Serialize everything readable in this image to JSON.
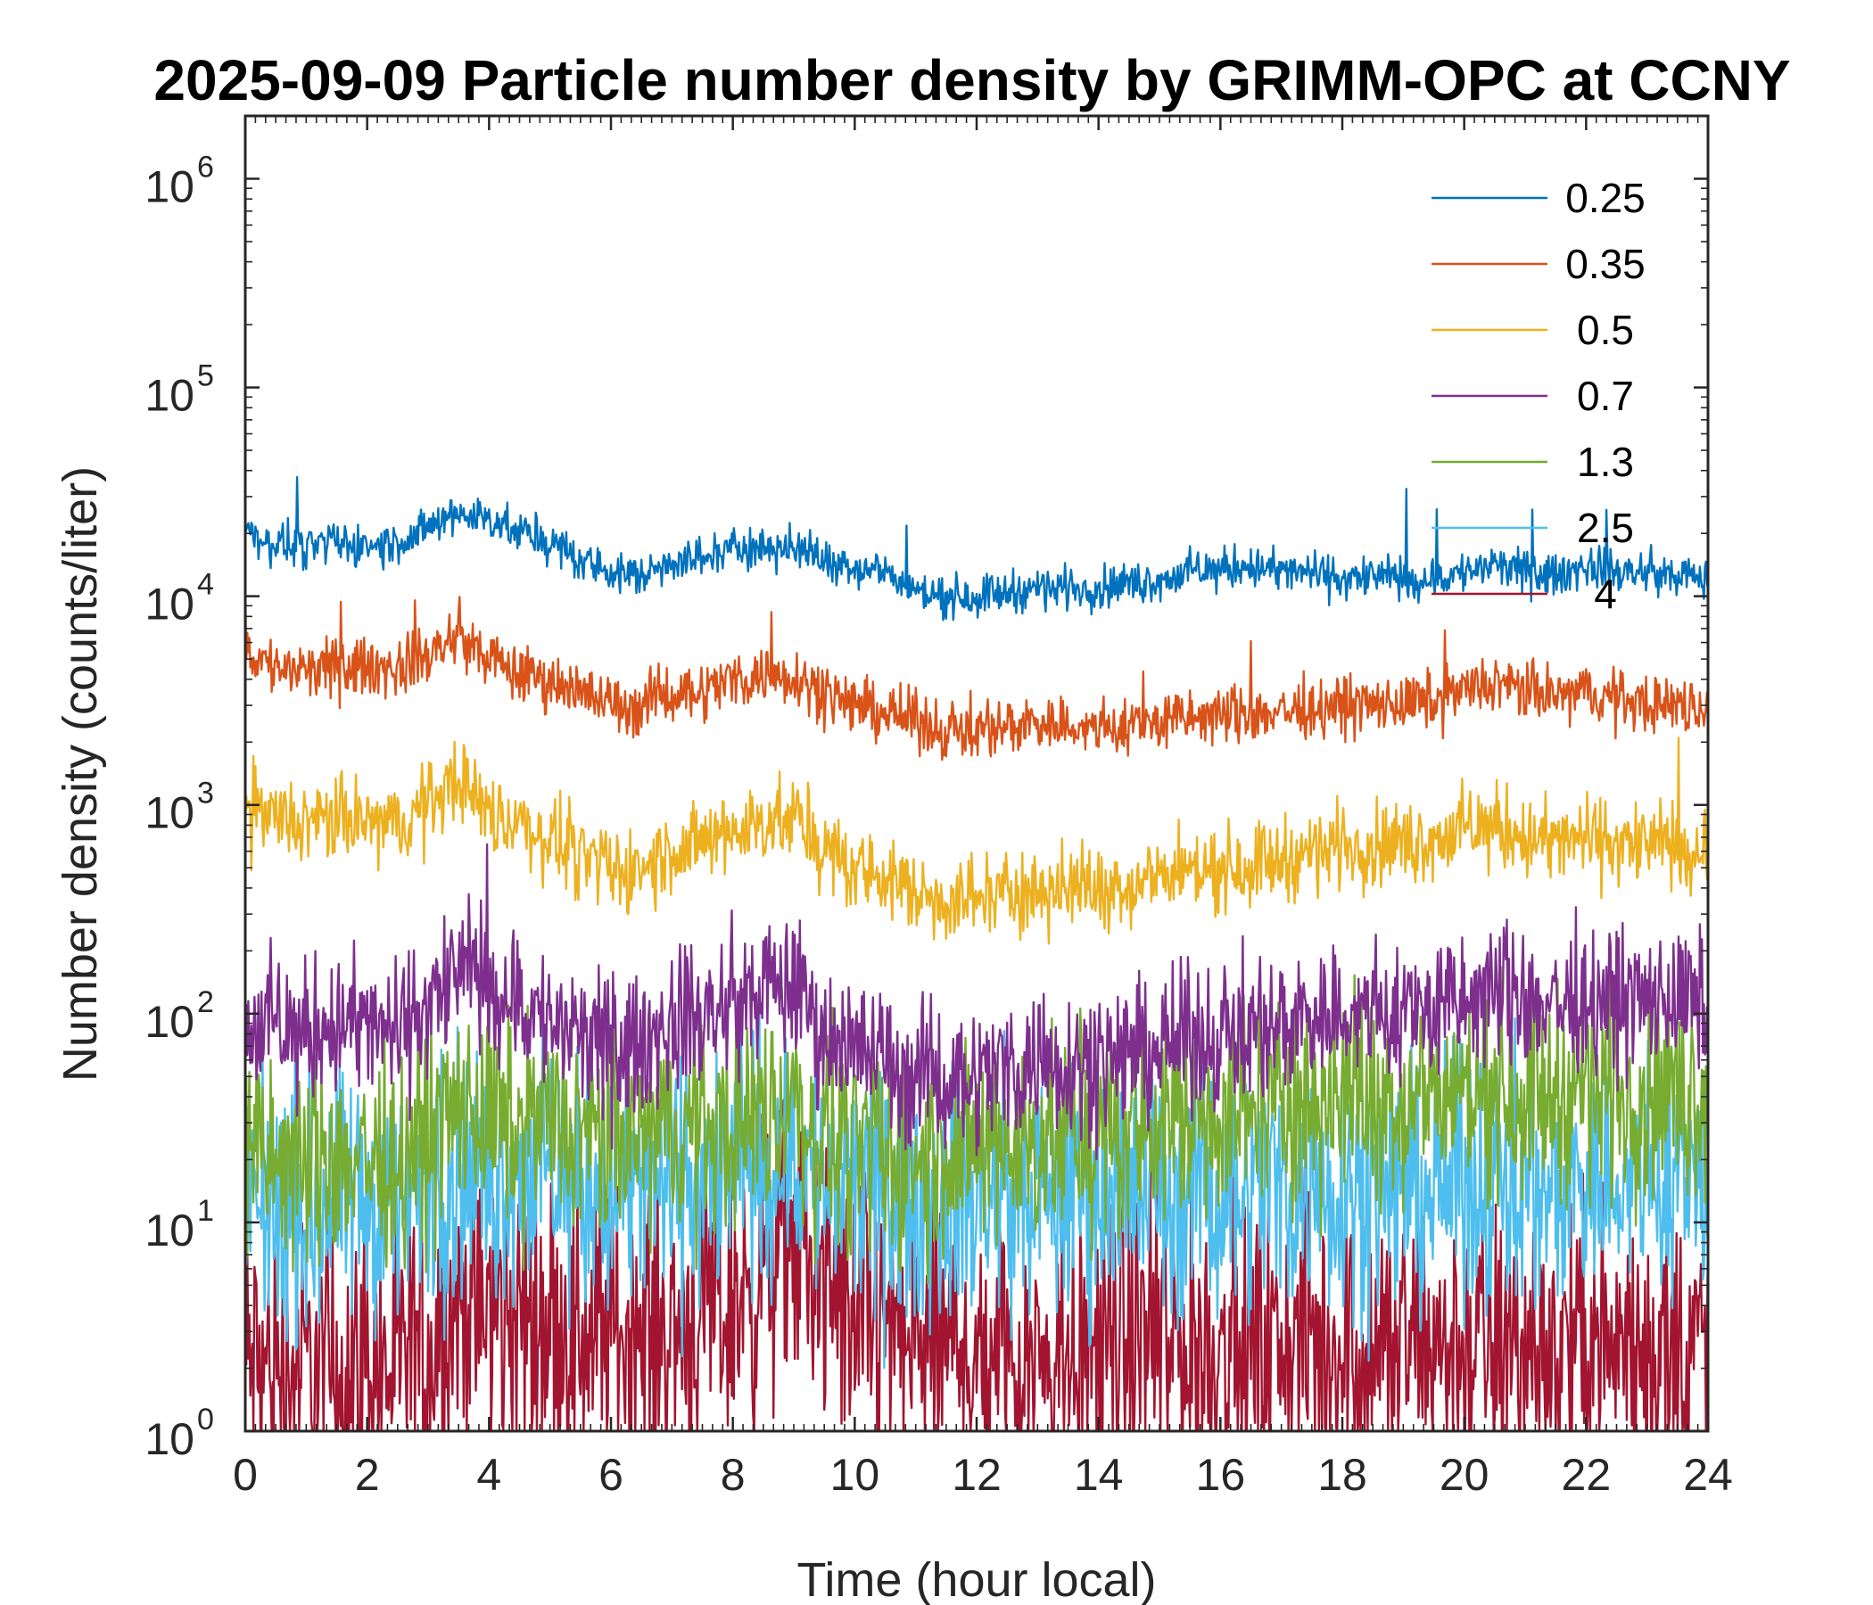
{
  "chart_data": {
    "type": "line",
    "title": "2025-09-09 Particle number density by GRIMM-OPC at CCNY",
    "xlabel": "Time (hour local)",
    "ylabel": "Number density (counts/liter)",
    "xlim": [
      0,
      24
    ],
    "ylim": [
      1,
      2000000
    ],
    "yscale": "log",
    "x_ticks": [
      "0",
      "2",
      "4",
      "6",
      "8",
      "10",
      "12",
      "14",
      "16",
      "18",
      "20",
      "22",
      "24"
    ],
    "y_ticks": [
      {
        "base": "10",
        "exp": "0"
      },
      {
        "base": "10",
        "exp": "1"
      },
      {
        "base": "10",
        "exp": "2"
      },
      {
        "base": "10",
        "exp": "3"
      },
      {
        "base": "10",
        "exp": "4"
      },
      {
        "base": "10",
        "exp": "5"
      },
      {
        "base": "10",
        "exp": "6"
      }
    ],
    "legend_position": "top-right",
    "x": [
      0,
      0.5,
      1,
      1.5,
      2,
      2.5,
      3,
      3.5,
      4,
      4.5,
      5,
      5.5,
      6,
      6.5,
      7,
      7.5,
      8,
      8.5,
      9,
      9.5,
      10,
      10.5,
      11,
      11.5,
      12,
      12.5,
      13,
      13.5,
      14,
      14.5,
      15,
      15.5,
      16,
      16.5,
      17,
      17.5,
      18,
      18.5,
      19,
      19.5,
      20,
      20.5,
      21,
      21.5,
      22,
      22.5,
      23,
      23.5,
      24
    ],
    "series": [
      {
        "name": "0.25",
        "color": "#0072BD",
        "noise": 0.05,
        "values": [
          20000,
          18000,
          17000,
          18000,
          17500,
          18000,
          21000,
          25000,
          24000,
          20000,
          18000,
          15000,
          13000,
          12500,
          15000,
          15000,
          17000,
          17500,
          17000,
          15000,
          14000,
          13000,
          10500,
          10000,
          10000,
          10500,
          11000,
          11000,
          11000,
          11500,
          12000,
          13000,
          13500,
          14000,
          13000,
          13000,
          12000,
          12500,
          12000,
          12000,
          13000,
          14000,
          13000,
          12500,
          14000,
          13000,
          13000,
          12500,
          12000
        ]
      },
      {
        "name": "0.35",
        "color": "#D95319",
        "noise": 0.07,
        "values": [
          5500,
          4500,
          4300,
          4500,
          4600,
          4500,
          5200,
          6500,
          5000,
          4200,
          4000,
          3500,
          3000,
          3000,
          3500,
          3500,
          4000,
          4200,
          4200,
          3500,
          3000,
          2800,
          2500,
          2300,
          2300,
          2400,
          2500,
          2400,
          2300,
          2400,
          2500,
          2600,
          2700,
          2700,
          2800,
          2900,
          3000,
          3000,
          3000,
          3200,
          3500,
          3800,
          3500,
          3300,
          3500,
          3200,
          3100,
          3000,
          2900
        ]
      },
      {
        "name": "0.5",
        "color": "#EDB120",
        "noise": 0.1,
        "values": [
          950,
          850,
          800,
          850,
          820,
          800,
          1000,
          1400,
          900,
          800,
          700,
          550,
          480,
          500,
          600,
          650,
          750,
          850,
          850,
          600,
          500,
          450,
          380,
          350,
          360,
          380,
          400,
          400,
          400,
          420,
          450,
          480,
          500,
          520,
          550,
          600,
          650,
          650,
          650,
          700,
          750,
          800,
          700,
          650,
          700,
          650,
          650,
          620,
          600
        ]
      },
      {
        "name": "0.7",
        "color": "#7E2F8E",
        "noise": 0.17,
        "values": [
          90,
          85,
          80,
          90,
          85,
          80,
          110,
          160,
          140,
          110,
          90,
          75,
          65,
          70,
          90,
          95,
          110,
          130,
          140,
          80,
          70,
          60,
          50,
          50,
          50,
          55,
          60,
          60,
          60,
          65,
          70,
          75,
          80,
          85,
          90,
          100,
          100,
          100,
          100,
          105,
          110,
          130,
          115,
          110,
          120,
          115,
          115,
          115,
          110
        ]
      },
      {
        "name": "1.3",
        "color": "#77AC30",
        "noise": 0.25,
        "values": [
          20,
          20,
          18,
          20,
          20,
          20,
          25,
          35,
          30,
          30,
          30,
          25,
          25,
          25,
          28,
          28,
          30,
          33,
          35,
          25,
          22,
          20,
          20,
          22,
          22,
          24,
          25,
          25,
          26,
          28,
          30,
          32,
          35,
          35,
          38,
          40,
          40,
          40,
          40,
          40,
          42,
          45,
          42,
          42,
          45,
          42,
          42,
          42,
          42
        ]
      },
      {
        "name": "2.5",
        "color": "#4DBEEE",
        "noise": 0.3,
        "values": [
          12,
          12,
          11,
          12,
          12,
          12,
          14,
          18,
          17,
          17,
          17,
          15,
          14,
          14,
          15,
          16,
          17,
          18,
          20,
          15,
          14,
          13,
          12,
          13,
          13,
          13,
          13,
          14,
          14,
          14,
          14,
          14,
          14,
          15,
          15,
          15,
          15,
          15,
          15,
          15,
          15,
          16,
          15,
          15,
          16,
          16,
          16,
          16,
          16
        ]
      },
      {
        "name": "4",
        "color": "#A2142F",
        "noise": 0.35,
        "values": [
          2,
          2,
          2,
          2,
          2,
          2,
          2.5,
          4,
          3.5,
          3.5,
          3.5,
          3,
          3,
          3,
          3,
          3.5,
          4,
          6,
          8,
          5,
          3.5,
          3,
          2.5,
          2.5,
          2.5,
          2.5,
          2.5,
          2.5,
          2.5,
          2.5,
          2.5,
          2.5,
          2.5,
          2.5,
          2.5,
          2.5,
          2.5,
          2.5,
          2.5,
          2.5,
          2.5,
          2.5,
          2.5,
          2.5,
          2.5,
          2.5,
          2.5,
          2.5,
          2.5
        ]
      }
    ]
  }
}
